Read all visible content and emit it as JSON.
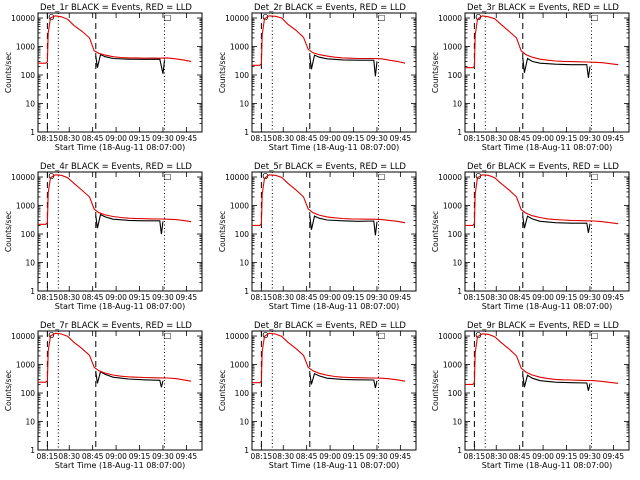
{
  "colors": {
    "events": "#000000",
    "lld": "#e00000",
    "axes": "#000000",
    "background": "#ffffff"
  },
  "xaxis": {
    "label": "Start Time (18-Aug-11 08:07:00)",
    "ticks": [
      "08:15",
      "08:30",
      "08:45",
      "09:00",
      "09:15",
      "09:30",
      "09:45"
    ]
  },
  "yaxis": {
    "label": "Counts/sec",
    "scale": "log",
    "ticks": [
      "1",
      "10",
      "100",
      "1000",
      "10000"
    ]
  },
  "chart_data": [
    {
      "type": "line",
      "title": "Det_1r BLACK = Events, RED = LLD",
      "x_time_min": [
        7,
        13,
        27,
        42,
        57,
        72,
        87,
        102,
        112
      ],
      "ylim": [
        1,
        15000
      ],
      "grid": false,
      "series": [
        {
          "name": "Events",
          "color": "black",
          "x": [
            44,
            45,
            47,
            50,
            55,
            65,
            75,
            85,
            87,
            88
          ],
          "y": [
            470,
            180,
            520,
            440,
            380,
            360,
            355,
            360,
            110,
            330
          ]
        },
        {
          "name": "LLD",
          "color": "red",
          "x": [
            7,
            12,
            13,
            13.5,
            15,
            18,
            22,
            26,
            30,
            35,
            40,
            43,
            46,
            50,
            55,
            60,
            65,
            70,
            75,
            80,
            85,
            90,
            95,
            100,
            105
          ],
          "y": [
            260,
            260,
            290,
            3000,
            10000,
            12000,
            11000,
            9000,
            5500,
            3500,
            2000,
            700,
            580,
            500,
            440,
            410,
            400,
            400,
            390,
            395,
            390,
            400,
            370,
            340,
            300
          ]
        }
      ],
      "markers": {
        "dashed_x": [
          13,
          44
        ],
        "dotted_x": [
          20,
          88
        ],
        "symbols": [
          "O",
          "□"
        ]
      }
    },
    {
      "type": "line",
      "title": "Det_2r BLACK = Events, RED = LLD",
      "x_time_min": [
        7,
        13,
        27,
        42,
        57,
        72,
        87,
        102,
        112
      ],
      "ylim": [
        1,
        15000
      ],
      "grid": false,
      "series": [
        {
          "name": "Events",
          "color": "black",
          "x": [
            44,
            45,
            47,
            50,
            55,
            65,
            75,
            85,
            86,
            87
          ],
          "y": [
            480,
            160,
            500,
            420,
            370,
            340,
            330,
            330,
            90,
            300
          ]
        },
        {
          "name": "LLD",
          "color": "red",
          "x": [
            7,
            12,
            13,
            13.5,
            15,
            18,
            22,
            26,
            30,
            35,
            40,
            43,
            46,
            50,
            55,
            60,
            65,
            70,
            75,
            80,
            85,
            90,
            95,
            100,
            105
          ],
          "y": [
            220,
            220,
            250,
            2600,
            9500,
            12000,
            11500,
            10000,
            6000,
            3800,
            2100,
            800,
            600,
            520,
            460,
            420,
            400,
            390,
            380,
            380,
            380,
            370,
            330,
            300,
            260
          ]
        }
      ],
      "markers": {
        "dashed_x": [
          13,
          44
        ],
        "dotted_x": [
          20,
          88
        ],
        "symbols": [
          "O",
          "□"
        ]
      }
    },
    {
      "type": "line",
      "title": "Det_3r BLACK = Events, RED = LLD",
      "x_time_min": [
        7,
        13,
        27,
        42,
        57,
        72,
        87,
        102,
        112
      ],
      "ylim": [
        1,
        15000
      ],
      "grid": false,
      "series": [
        {
          "name": "Events",
          "color": "black",
          "x": [
            44,
            45,
            47,
            50,
            55,
            65,
            75,
            85,
            86,
            87
          ],
          "y": [
            400,
            120,
            380,
            300,
            260,
            240,
            230,
            230,
            80,
            200
          ]
        },
        {
          "name": "LLD",
          "color": "red",
          "x": [
            7,
            12,
            13,
            13.5,
            15,
            18,
            22,
            26,
            30,
            35,
            40,
            43,
            46,
            50,
            55,
            60,
            65,
            70,
            75,
            80,
            85,
            90,
            95,
            100,
            105
          ],
          "y": [
            180,
            180,
            200,
            2500,
            9000,
            12000,
            11000,
            9500,
            6000,
            3500,
            2000,
            700,
            520,
            420,
            360,
            330,
            310,
            300,
            295,
            290,
            285,
            280,
            270,
            250,
            230
          ]
        }
      ],
      "markers": {
        "dashed_x": [
          13,
          44
        ],
        "dotted_x": [
          20,
          88
        ],
        "symbols": [
          "O",
          "□"
        ]
      }
    },
    {
      "type": "line",
      "title": "Det_4r BLACK = Events, RED = LLD",
      "x_time_min": [
        7,
        13,
        27,
        42,
        57,
        72,
        87,
        102,
        112
      ],
      "ylim": [
        1,
        15000
      ],
      "grid": false,
      "series": [
        {
          "name": "Events",
          "color": "black",
          "x": [
            44,
            45,
            47,
            50,
            55,
            65,
            75,
            85,
            86,
            87
          ],
          "y": [
            440,
            160,
            480,
            400,
            330,
            300,
            290,
            290,
            100,
            280
          ]
        },
        {
          "name": "LLD",
          "color": "red",
          "x": [
            7,
            12,
            13,
            13.5,
            15,
            18,
            22,
            26,
            30,
            35,
            40,
            43,
            46,
            50,
            55,
            60,
            65,
            70,
            75,
            80,
            85,
            90,
            95,
            100,
            105
          ],
          "y": [
            220,
            220,
            250,
            2800,
            9500,
            12000,
            11500,
            9500,
            6000,
            3500,
            2000,
            750,
            560,
            470,
            410,
            380,
            360,
            350,
            345,
            340,
            335,
            330,
            320,
            300,
            270
          ]
        }
      ],
      "markers": {
        "dashed_x": [
          13,
          44
        ],
        "dotted_x": [
          20,
          88
        ],
        "symbols": [
          "O",
          "□"
        ]
      }
    },
    {
      "type": "line",
      "title": "Det_5r BLACK = Events, RED = LLD",
      "x_time_min": [
        7,
        13,
        27,
        42,
        57,
        72,
        87,
        102,
        112
      ],
      "ylim": [
        1,
        15000
      ],
      "grid": false,
      "series": [
        {
          "name": "Events",
          "color": "black",
          "x": [
            44,
            45,
            47,
            50,
            55,
            65,
            75,
            85,
            86,
            87
          ],
          "y": [
            440,
            140,
            420,
            360,
            310,
            290,
            280,
            285,
            90,
            270
          ]
        },
        {
          "name": "LLD",
          "color": "red",
          "x": [
            7,
            12,
            13,
            13.5,
            15,
            18,
            22,
            26,
            30,
            35,
            40,
            43,
            46,
            50,
            55,
            60,
            65,
            70,
            75,
            80,
            85,
            90,
            95,
            100,
            105
          ],
          "y": [
            200,
            200,
            230,
            2500,
            9000,
            12000,
            11500,
            9800,
            6000,
            3600,
            2000,
            760,
            560,
            460,
            400,
            370,
            350,
            340,
            335,
            330,
            330,
            320,
            300,
            280,
            250
          ]
        }
      ],
      "markers": {
        "dashed_x": [
          13,
          44
        ],
        "dotted_x": [
          20,
          88
        ],
        "symbols": [
          "O",
          "□"
        ]
      }
    },
    {
      "type": "line",
      "title": "Det_6r BLACK = Events, RED = LLD",
      "x_time_min": [
        7,
        13,
        27,
        42,
        57,
        72,
        87,
        102,
        112
      ],
      "ylim": [
        1,
        15000
      ],
      "grid": false,
      "series": [
        {
          "name": "Events",
          "color": "black",
          "x": [
            44,
            45,
            47,
            50,
            55,
            65,
            75,
            85,
            86,
            87
          ],
          "y": [
            420,
            160,
            420,
            340,
            280,
            250,
            240,
            240,
            110,
            230
          ]
        },
        {
          "name": "LLD",
          "color": "red",
          "x": [
            7,
            12,
            13,
            13.5,
            15,
            18,
            22,
            26,
            30,
            35,
            40,
            43,
            46,
            50,
            55,
            60,
            65,
            70,
            75,
            80,
            85,
            90,
            95,
            100,
            105
          ],
          "y": [
            200,
            200,
            230,
            2600,
            9500,
            12000,
            11500,
            9500,
            6000,
            3600,
            2000,
            720,
            540,
            440,
            380,
            340,
            320,
            310,
            300,
            295,
            290,
            285,
            270,
            250,
            230
          ]
        }
      ],
      "markers": {
        "dashed_x": [
          13,
          44
        ],
        "dotted_x": [
          20,
          88
        ],
        "symbols": [
          "O",
          "□"
        ]
      }
    },
    {
      "type": "line",
      "title": "Det_7r BLACK = Events, RED = LLD",
      "x_time_min": [
        7,
        13,
        27,
        42,
        57,
        72,
        87,
        102,
        112
      ],
      "ylim": [
        1,
        15000
      ],
      "grid": false,
      "series": [
        {
          "name": "Events",
          "color": "black",
          "x": [
            44,
            45,
            47,
            50,
            55,
            65,
            75,
            85,
            86,
            87
          ],
          "y": [
            560,
            220,
            560,
            450,
            360,
            310,
            290,
            280,
            160,
            270
          ]
        },
        {
          "name": "LLD",
          "color": "red",
          "x": [
            7,
            12,
            13,
            13.5,
            15,
            18,
            22,
            26,
            30,
            35,
            40,
            43,
            46,
            50,
            55,
            60,
            65,
            70,
            75,
            80,
            85,
            90,
            95,
            100,
            105
          ],
          "y": [
            240,
            240,
            270,
            3000,
            10000,
            12500,
            11800,
            9800,
            6000,
            3700,
            2100,
            800,
            600,
            500,
            430,
            390,
            370,
            360,
            350,
            345,
            340,
            335,
            320,
            290,
            260
          ]
        }
      ],
      "markers": {
        "dashed_x": [
          13,
          44
        ],
        "dotted_x": [
          20,
          88
        ],
        "symbols": [
          "O",
          "□"
        ]
      }
    },
    {
      "type": "line",
      "title": "Det_8r BLACK = Events, RED = LLD",
      "x_time_min": [
        7,
        13,
        27,
        42,
        57,
        72,
        87,
        102,
        112
      ],
      "ylim": [
        1,
        15000
      ],
      "grid": false,
      "series": [
        {
          "name": "Events",
          "color": "black",
          "x": [
            44,
            45,
            47,
            50,
            55,
            65,
            75,
            85,
            86,
            87
          ],
          "y": [
            500,
            200,
            480,
            400,
            330,
            300,
            290,
            285,
            150,
            270
          ]
        },
        {
          "name": "LLD",
          "color": "red",
          "x": [
            7,
            12,
            13,
            13.5,
            15,
            18,
            22,
            26,
            30,
            35,
            40,
            43,
            46,
            50,
            55,
            60,
            65,
            70,
            75,
            80,
            85,
            90,
            95,
            100,
            105
          ],
          "y": [
            230,
            230,
            260,
            2900,
            9800,
            12500,
            11800,
            9800,
            6000,
            3700,
            2100,
            800,
            600,
            490,
            420,
            380,
            360,
            350,
            345,
            340,
            335,
            330,
            315,
            290,
            260
          ]
        }
      ],
      "markers": {
        "dashed_x": [
          13,
          44
        ],
        "dotted_x": [
          20,
          88
        ],
        "symbols": [
          "O",
          "□"
        ]
      }
    },
    {
      "type": "line",
      "title": "Det_9r BLACK = Events, RED = LLD",
      "x_time_min": [
        7,
        13,
        27,
        42,
        57,
        72,
        87,
        102,
        112
      ],
      "ylim": [
        1,
        15000
      ],
      "grid": false,
      "series": [
        {
          "name": "Events",
          "color": "black",
          "x": [
            44,
            45,
            47,
            50,
            55,
            65,
            75,
            85,
            86,
            87
          ],
          "y": [
            440,
            160,
            420,
            330,
            270,
            240,
            230,
            225,
            120,
            215
          ]
        },
        {
          "name": "LLD",
          "color": "red",
          "x": [
            7,
            12,
            13,
            13.5,
            15,
            18,
            22,
            26,
            30,
            35,
            40,
            43,
            46,
            50,
            55,
            60,
            65,
            70,
            75,
            80,
            85,
            90,
            95,
            100,
            105
          ],
          "y": [
            200,
            200,
            230,
            2600,
            9500,
            12000,
            11500,
            9500,
            6000,
            3600,
            2000,
            740,
            540,
            430,
            360,
            320,
            300,
            290,
            285,
            280,
            275,
            270,
            255,
            235,
            220
          ]
        }
      ],
      "markers": {
        "dashed_x": [
          13,
          44
        ],
        "dotted_x": [
          20,
          88
        ],
        "symbols": [
          "O",
          "□"
        ]
      }
    }
  ]
}
